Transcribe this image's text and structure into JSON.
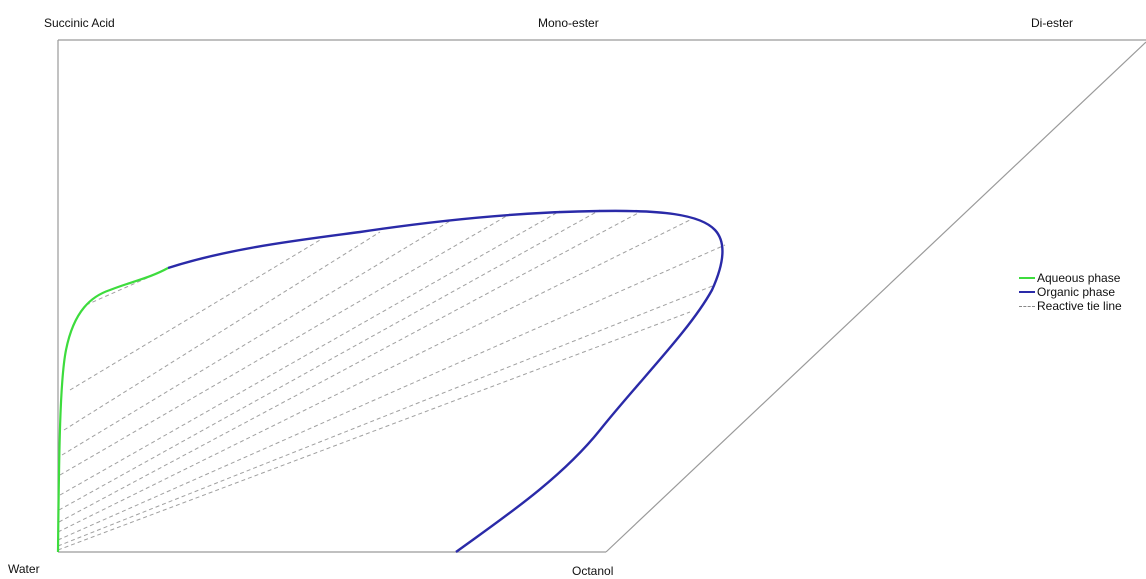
{
  "diagram": {
    "corners": {
      "top_left": "Succinic Acid",
      "top_middle": "Mono-ester",
      "top_right": "Di-ester",
      "bottom_left": "Water",
      "bottom_middle": "Octanol"
    },
    "legend": [
      {
        "label": "Aqueous phase",
        "color": "#3ddc3d",
        "style": "solid"
      },
      {
        "label": "Organic phase",
        "color": "#2a2aa8",
        "style": "solid"
      },
      {
        "label": "Reactive tie line",
        "color": "#999999",
        "style": "dashed"
      }
    ],
    "colors": {
      "frame": "#9a9a9a",
      "aqueous": "#3ddc3d",
      "organic": "#2a2aa8",
      "tie_line": "#a0a0a0"
    }
  }
}
